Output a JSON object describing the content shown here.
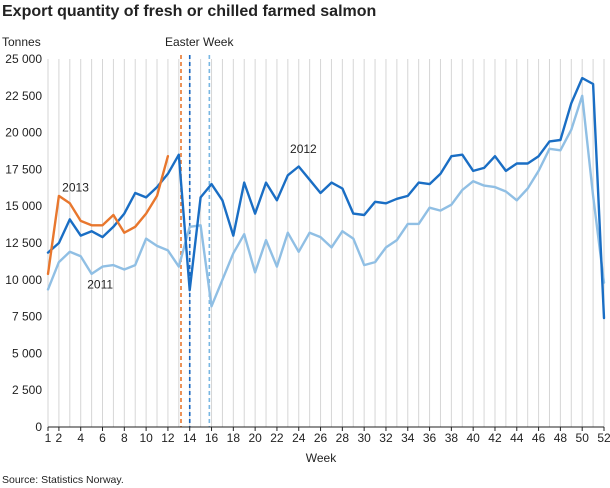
{
  "chart_data": {
    "type": "line",
    "title": "Export quantity of fresh or chilled farmed salmon",
    "unit_label": "Tonnes",
    "xlabel": "Week",
    "source": "Source: Statistics Norway.",
    "xlim": [
      1,
      52
    ],
    "ylim": [
      0,
      25000
    ],
    "y_ticks": [
      0,
      2500,
      5000,
      7500,
      10000,
      12500,
      15000,
      17500,
      20000,
      22500,
      25000
    ],
    "y_tick_labels": [
      "0",
      "2 500",
      "5 000",
      "7 500",
      "10 000",
      "12 500",
      "15 000",
      "17 500",
      "20 000",
      "22 500",
      "25 000"
    ],
    "x_ticks": [
      1,
      2,
      4,
      6,
      8,
      10,
      12,
      14,
      16,
      18,
      20,
      22,
      24,
      26,
      28,
      30,
      32,
      34,
      36,
      38,
      40,
      42,
      44,
      46,
      48,
      50,
      52
    ],
    "x_tick_labels": [
      "1",
      "2",
      "4",
      "6",
      "8",
      "10",
      "12",
      "14",
      "16",
      "18",
      "20",
      "22",
      "24",
      "26",
      "28",
      "30",
      "32",
      "34",
      "36",
      "38",
      "40",
      "42",
      "44",
      "46",
      "48",
      "50",
      "52"
    ],
    "grid": "vertical lines at every week",
    "annotations": [
      {
        "text": "Easter Week"
      }
    ],
    "vlines": [
      {
        "week": 13.2,
        "series": "2013",
        "color": "#e8772e",
        "style": "dashed"
      },
      {
        "week": 14,
        "series": "2012",
        "color": "#1565c0",
        "style": "dashed"
      },
      {
        "week": 15.8,
        "series": "2011",
        "color": "#7ab8e3",
        "style": "dashed"
      }
    ],
    "series": [
      {
        "name": "2011",
        "color": "#90bfe4",
        "x": [
          1,
          2,
          3,
          4,
          5,
          6,
          7,
          8,
          9,
          10,
          11,
          12,
          13,
          14,
          15,
          16,
          17,
          18,
          19,
          20,
          21,
          22,
          23,
          24,
          25,
          26,
          27,
          28,
          29,
          30,
          31,
          32,
          33,
          34,
          35,
          36,
          37,
          38,
          39,
          40,
          41,
          42,
          43,
          44,
          45,
          46,
          47,
          48,
          49,
          50,
          51,
          52
        ],
        "values": [
          9350,
          11200,
          11900,
          11600,
          10400,
          10900,
          11000,
          10700,
          11000,
          12800,
          12300,
          12000,
          10900,
          13600,
          13700,
          8200,
          10000,
          11800,
          13100,
          10500,
          12700,
          10900,
          13200,
          11900,
          13200,
          12900,
          12200,
          13300,
          12800,
          11000,
          11200,
          12200,
          12700,
          13800,
          13800,
          14900,
          14700,
          15100,
          16100,
          16700,
          16400,
          16300,
          16000,
          15400,
          16200,
          17400,
          18900,
          18800,
          20200,
          22500,
          15700,
          9800
        ]
      },
      {
        "name": "2012",
        "color": "#1a6ec4",
        "x": [
          1,
          2,
          3,
          4,
          5,
          6,
          7,
          8,
          9,
          10,
          11,
          12,
          13,
          14,
          15,
          16,
          17,
          18,
          19,
          20,
          21,
          22,
          23,
          24,
          25,
          26,
          27,
          28,
          29,
          30,
          31,
          32,
          33,
          34,
          35,
          36,
          37,
          38,
          39,
          40,
          41,
          42,
          43,
          44,
          45,
          46,
          47,
          48,
          49,
          50,
          51,
          52
        ],
        "values": [
          11850,
          12500,
          14100,
          13000,
          13300,
          12900,
          13600,
          14500,
          15900,
          15600,
          16300,
          17200,
          18500,
          9300,
          15600,
          16500,
          15400,
          13000,
          16600,
          14500,
          16600,
          15400,
          17100,
          17700,
          16800,
          15900,
          16600,
          16200,
          14500,
          14400,
          15300,
          15200,
          15500,
          15700,
          16600,
          16500,
          17200,
          18400,
          18500,
          17400,
          17600,
          18400,
          17400,
          17900,
          17900,
          18400,
          19400,
          19500,
          22000,
          23700,
          23300,
          7400
        ]
      },
      {
        "name": "2013",
        "color": "#e8772e",
        "x": [
          1,
          2,
          3,
          4,
          5,
          6,
          7,
          8,
          9,
          10,
          11,
          12
        ],
        "values": [
          10400,
          15700,
          15200,
          14000,
          13700,
          13700,
          14400,
          13200,
          13600,
          14500,
          15700,
          18400
        ]
      }
    ],
    "series_label_positions": [
      {
        "name": "2013",
        "x": 2.3,
        "y": 16000
      },
      {
        "name": "2011",
        "x": 4.6,
        "y": 9400
      },
      {
        "name": "2012",
        "x": 23.2,
        "y": 18600
      }
    ]
  }
}
